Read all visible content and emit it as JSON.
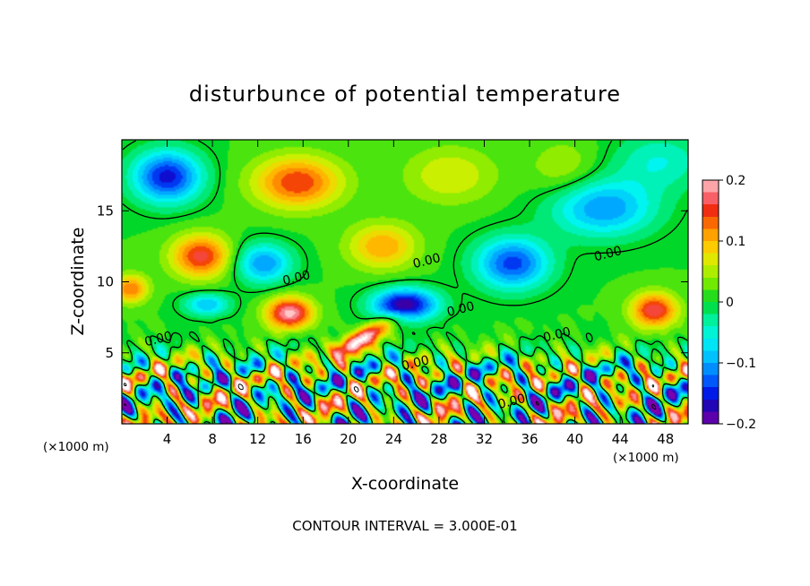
{
  "chart_data": {
    "type": "heatmap",
    "title": "disturbunce of potential temperature",
    "xlabel": "X-coordinate",
    "ylabel": "Z-coordinate",
    "x_unit": "(×1000 m)",
    "x_unit_right": "(×1000 m)",
    "xlim": [
      0,
      50
    ],
    "ylim": [
      0,
      20
    ],
    "x_ticks": [
      4,
      8,
      12,
      16,
      20,
      24,
      28,
      32,
      36,
      40,
      44,
      48
    ],
    "y_ticks": [
      5,
      10,
      15
    ],
    "colorbar": {
      "range": [
        -0.2,
        0.2
      ],
      "tick_values": [
        0.2,
        0.1,
        0,
        -0.1,
        -0.2
      ],
      "tick_labels": [
        "0.2",
        "0.1",
        "0",
        "−0.1",
        "−0.2"
      ]
    },
    "contour_label": "0.00",
    "contour_labels": [
      {
        "x": 3.3,
        "z": 5.7
      },
      {
        "x": 15.5,
        "z": 10.0
      },
      {
        "x": 27.0,
        "z": 11.2
      },
      {
        "x": 30.0,
        "z": 7.8
      },
      {
        "x": 43.0,
        "z": 11.7
      },
      {
        "x": 38.5,
        "z": 6.0
      },
      {
        "x": 26.0,
        "z": 4.0
      },
      {
        "x": 34.5,
        "z": 1.3
      }
    ],
    "footer": "CONTOUR INTERVAL = 3.000E-01",
    "features": [
      {
        "x": 4.0,
        "z": 17.4,
        "v": -0.17,
        "sx": 3.0,
        "sz": 1.8
      },
      {
        "x": 15.5,
        "z": 17.0,
        "v": 0.14,
        "sx": 3.8,
        "sz": 1.8
      },
      {
        "x": 23.0,
        "z": 12.5,
        "v": 0.1,
        "sx": 3.0,
        "sz": 1.6
      },
      {
        "x": 12.5,
        "z": 11.3,
        "v": -0.12,
        "sx": 2.5,
        "sz": 1.4
      },
      {
        "x": 7.0,
        "z": 11.8,
        "v": 0.15,
        "sx": 2.6,
        "sz": 1.5
      },
      {
        "x": 34.5,
        "z": 11.3,
        "v": -0.15,
        "sx": 3.2,
        "sz": 1.8
      },
      {
        "x": 42.5,
        "z": 15.2,
        "v": -0.12,
        "sx": 4.5,
        "sz": 2.0
      },
      {
        "x": 47.5,
        "z": 18.5,
        "v": -0.06,
        "sx": 4.0,
        "sz": 2.0
      },
      {
        "x": 25.0,
        "z": 8.4,
        "v": -0.2,
        "sx": 2.8,
        "sz": 1.1
      },
      {
        "x": 14.8,
        "z": 7.8,
        "v": 0.19,
        "sx": 2.0,
        "sz": 1.1
      },
      {
        "x": 7.5,
        "z": 8.4,
        "v": -0.1,
        "sx": 2.0,
        "sz": 0.8
      },
      {
        "x": 47.0,
        "z": 8.0,
        "v": 0.16,
        "sx": 2.0,
        "sz": 1.2
      },
      {
        "x": 0.8,
        "z": 9.5,
        "v": 0.12,
        "sx": 1.5,
        "sz": 1.0
      },
      {
        "x": 29.0,
        "z": 17.5,
        "v": 0.06,
        "sx": 4.0,
        "sz": 2.0
      },
      {
        "x": 39.0,
        "z": 18.0,
        "v": 0.04,
        "sx": 3.0,
        "sz": 2.0
      }
    ]
  }
}
